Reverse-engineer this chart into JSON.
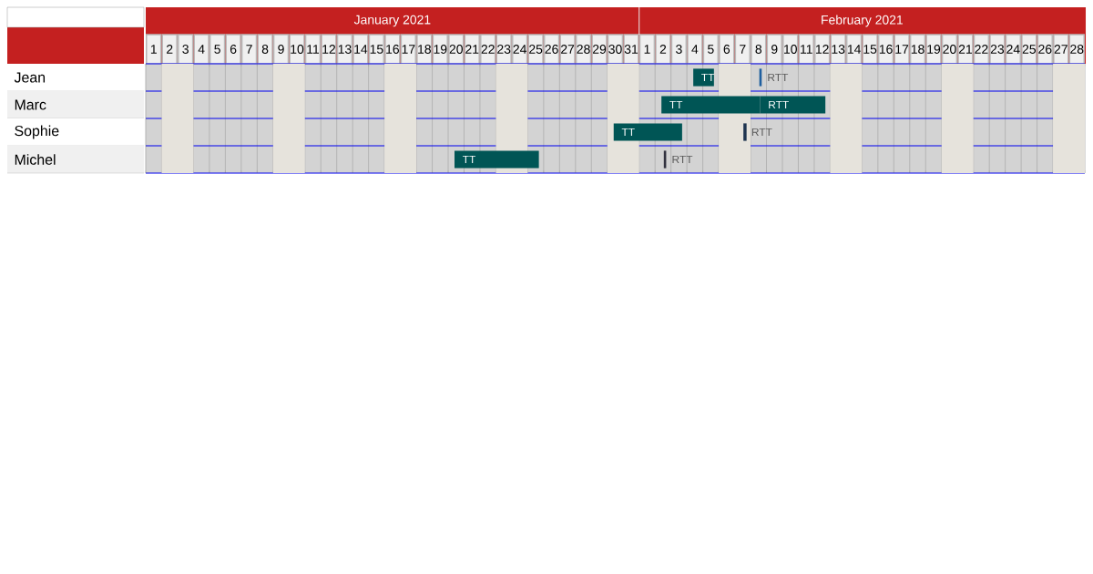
{
  "chart_data": {
    "type": "bar",
    "orientation": "horizontal",
    "categories": [
      "Jean",
      "Marc",
      "Sophie",
      "Michel"
    ],
    "series": [
      {
        "name": "TT",
        "color": "#005555",
        "base": [
          34.9,
          32.9,
          29.9,
          19.9
        ],
        "values": [
          1.3,
          6.2,
          4.3,
          5.3
        ]
      },
      {
        "name": "RTT",
        "colors": [
          "#1f5f9f",
          "#005555",
          "#1f3550",
          "#333340"
        ],
        "base": [
          39.05,
          39.1,
          38.05,
          33.05
        ],
        "values": [
          0.15,
          4.1,
          0.2,
          0.15
        ]
      }
    ],
    "xlim": [
      0.5,
      59.5
    ],
    "xticks": [
      1,
      2,
      3,
      4,
      5,
      6,
      7,
      8,
      9,
      10,
      11,
      12,
      13,
      14,
      15,
      16,
      17,
      18,
      19,
      20,
      21,
      22,
      23,
      24,
      25,
      26,
      27,
      28,
      29,
      30,
      31
    ],
    "x2lim": [
      -30.5,
      28.5
    ],
    "x2ticks": [
      1,
      2,
      3,
      4,
      5,
      6,
      7,
      8,
      9,
      10,
      11,
      12,
      13,
      14,
      15,
      16,
      17,
      18,
      19,
      20,
      21,
      22,
      23,
      24,
      25,
      26,
      27,
      28
    ],
    "annotations": [
      "January 2021",
      "February 2021"
    ],
    "bands": [
      {
        "axis": "x",
        "from": 1.5,
        "to": 3.5,
        "color": "#e6e3dc"
      },
      {
        "axis": "x",
        "from": 8.5,
        "to": 10.5,
        "color": "#e6e3dc"
      },
      {
        "axis": "x",
        "from": 15.5,
        "to": 17.5,
        "color": "#e6e3dc"
      },
      {
        "axis": "x",
        "from": 22.5,
        "to": 24.5,
        "color": "#e6e3dc"
      },
      {
        "axis": "x",
        "from": 29.5,
        "to": 31.5,
        "color": "#e6e3dc"
      },
      {
        "axis": "x",
        "from": 36.5,
        "to": 38.5,
        "color": "#e6e3dc"
      },
      {
        "axis": "x",
        "from": 43.5,
        "to": 45.5,
        "color": "#e6e3dc"
      },
      {
        "axis": "x",
        "from": 50.5,
        "to": 52.5,
        "color": "#e6e3dc"
      },
      {
        "axis": "x",
        "from": 57.5,
        "to": 59.5,
        "color": "#e6e3dc"
      }
    ],
    "grid": true
  }
}
